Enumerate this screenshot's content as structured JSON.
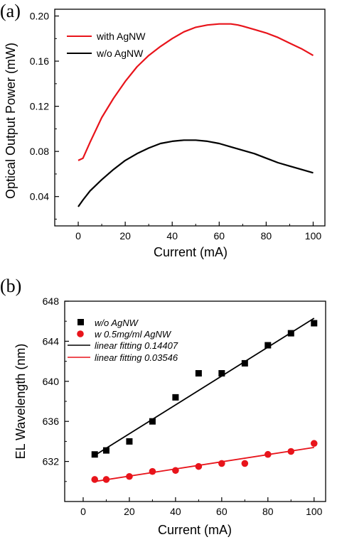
{
  "chart_data": [
    {
      "panel_label": "(a)",
      "type": "line",
      "xlabel": "Current (mA)",
      "ylabel": "Optical Output Power (mW)",
      "xlim": [
        -10,
        105
      ],
      "ylim": [
        0.014,
        0.206
      ],
      "xticks": [
        0,
        20,
        40,
        60,
        80,
        100
      ],
      "yticks": [
        0.04,
        0.08,
        0.12,
        0.16,
        0.2
      ],
      "ytick_labels": [
        "0.04",
        "0.08",
        "0.12",
        "0.16",
        "0.20"
      ],
      "legend_position": "top-left",
      "series": [
        {
          "name": "with AgNW",
          "color": "#e8141b",
          "x": [
            0,
            2,
            5,
            10,
            15,
            20,
            25,
            30,
            35,
            40,
            45,
            50,
            55,
            60,
            65,
            68,
            70,
            75,
            80,
            85,
            90,
            95,
            100
          ],
          "y": [
            0.072,
            0.074,
            0.088,
            0.11,
            0.127,
            0.142,
            0.155,
            0.165,
            0.173,
            0.18,
            0.186,
            0.19,
            0.192,
            0.193,
            0.193,
            0.192,
            0.191,
            0.188,
            0.185,
            0.181,
            0.176,
            0.171,
            0.165
          ]
        },
        {
          "name": "w/o AgNW",
          "color": "#000000",
          "x": [
            0,
            2,
            5,
            10,
            15,
            20,
            25,
            30,
            35,
            40,
            45,
            50,
            55,
            60,
            65,
            70,
            75,
            80,
            85,
            90,
            95,
            100
          ],
          "y": [
            0.031,
            0.037,
            0.045,
            0.055,
            0.064,
            0.072,
            0.078,
            0.083,
            0.087,
            0.089,
            0.09,
            0.09,
            0.089,
            0.087,
            0.084,
            0.081,
            0.078,
            0.074,
            0.07,
            0.067,
            0.064,
            0.061
          ]
        }
      ]
    },
    {
      "panel_label": "(b)",
      "type": "scatter",
      "xlabel": "Current (mA)",
      "ylabel": "EL Wavelength  (nm)",
      "xlim": [
        -8,
        105
      ],
      "ylim": [
        628,
        648
      ],
      "xticks": [
        0,
        20,
        40,
        60,
        80,
        100
      ],
      "yticks": [
        632,
        636,
        640,
        644,
        648
      ],
      "legend_position": "top-left",
      "series": [
        {
          "name": "w/o AgNW",
          "marker": "square",
          "color": "#000000",
          "x": [
            5,
            10,
            20,
            30,
            40,
            50,
            60,
            70,
            80,
            90,
            100
          ],
          "y": [
            632.7,
            633.1,
            634.0,
            636.0,
            638.4,
            640.8,
            640.8,
            641.8,
            643.6,
            644.8,
            645.8
          ]
        },
        {
          "name": "w 0.5mg/ml AgNW",
          "marker": "circle",
          "color": "#e8141b",
          "x": [
            5,
            10,
            20,
            30,
            40,
            50,
            60,
            70,
            80,
            90,
            100
          ],
          "y": [
            630.2,
            630.2,
            630.5,
            631.0,
            631.1,
            631.5,
            631.8,
            631.8,
            632.7,
            633.0,
            633.8
          ]
        },
        {
          "name": "linear fitting 0.14407",
          "type": "line",
          "color": "#000000",
          "x": [
            5,
            100
          ],
          "y": [
            632.6,
            646.3
          ]
        },
        {
          "name": "linear fitting 0.03546",
          "type": "line",
          "color": "#e8141b",
          "x": [
            5,
            100
          ],
          "y": [
            630.0,
            633.4
          ]
        }
      ]
    }
  ]
}
